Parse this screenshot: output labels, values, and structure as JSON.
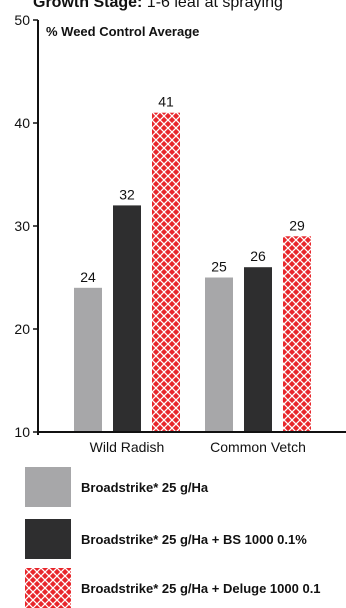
{
  "header": {
    "stage_prefix": "Growth Stage:",
    "stage_text": " 1-6 leaf at spraying"
  },
  "colors": {
    "series_1": "#a7a7a9",
    "series_2": "#2e2e2f",
    "series_3_red": "#e8262b",
    "series_3_pattern": "#ffffff",
    "axis": "#111111"
  },
  "chart_data": {
    "type": "bar",
    "title": "% Weed Control Average",
    "xlabel": "",
    "ylabel": "",
    "categories": [
      "Wild Radish",
      "Common Vetch"
    ],
    "ylim": [
      10,
      50
    ],
    "yticks": [
      10,
      20,
      30,
      40,
      50
    ],
    "grid": false,
    "legend_position": "bottom",
    "series": [
      {
        "name": "Broadstrike* 25 g/Ha",
        "values": [
          24,
          25
        ],
        "labels": [
          "24",
          "25"
        ]
      },
      {
        "name": "Broadstrike* 25 g/Ha + BS 1000 0.1%",
        "values": [
          32,
          26
        ],
        "labels": [
          "32",
          "26"
        ]
      },
      {
        "name": "Broadstrike* 25 g/Ha + Deluge 1000 0.1",
        "values": [
          41,
          29
        ],
        "labels": [
          "41",
          "29"
        ]
      }
    ]
  }
}
